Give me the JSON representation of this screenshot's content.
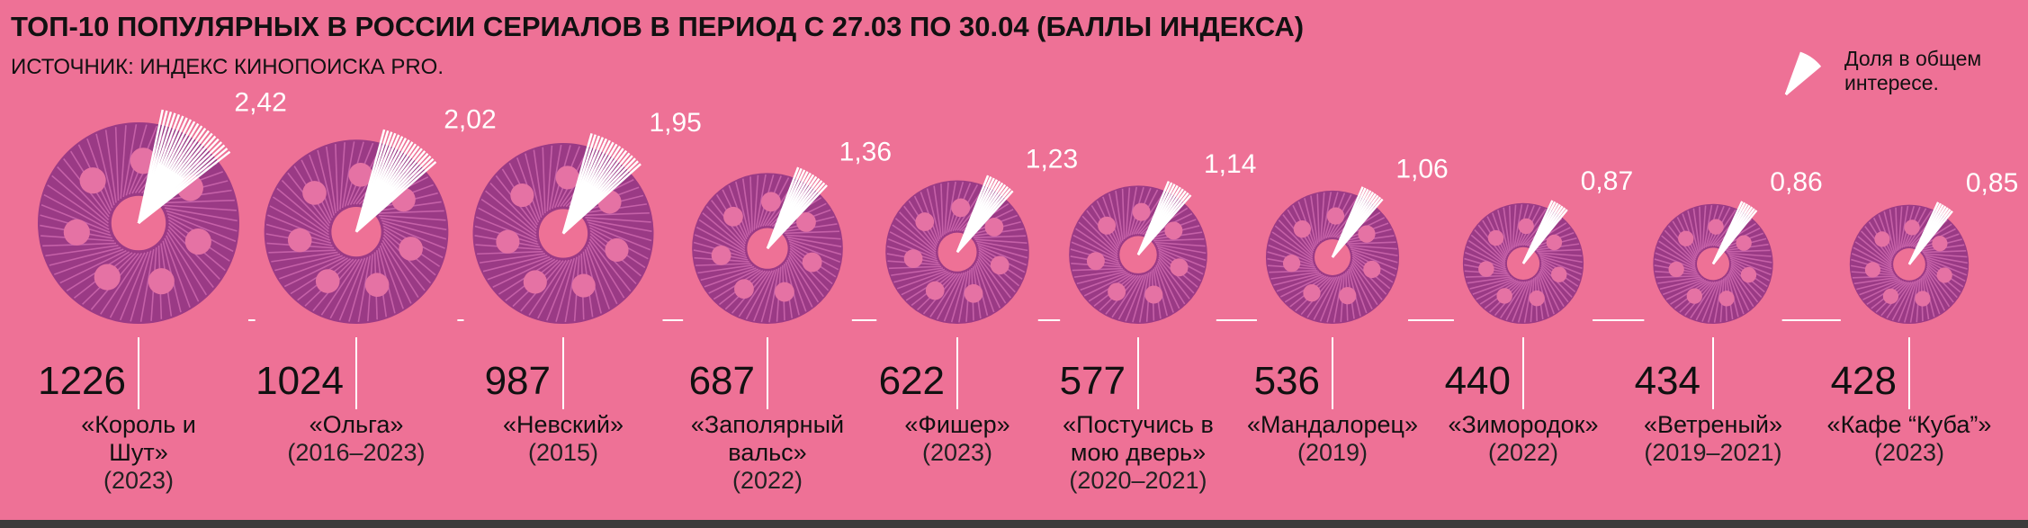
{
  "chart_data": {
    "type": "wheel",
    "title": "ТОП-10 ПОПУЛЯРНЫХ В РОССИИ СЕРИАЛОВ В ПЕРИОД С 27.03 ПО 30.04 (БАЛЛЫ ИНДЕКСА)",
    "subtitle": "ИСТОЧНИК: ИНДЕКС КИНОПОИСКА PRO.",
    "legend_label": "Доля в общем интересе.",
    "categories": [
      "«Король и Шут»",
      "«Ольга»",
      "«Невский»",
      "«Заполярный вальс»",
      "«Фишер»",
      "«Постучись в мою дверь»",
      "«Мандалорец»",
      "«Зимородок»",
      "«Ветреный»",
      "«Кафе “Куба”»"
    ],
    "years": [
      "(2023)",
      "(2016–2023)",
      "(2015)",
      "(2022)",
      "(2023)",
      "(2020–2021)",
      "(2019)",
      "(2022)",
      "(2019–2021)",
      "(2023)"
    ],
    "values": [
      1226,
      1024,
      987,
      687,
      622,
      577,
      536,
      440,
      434,
      428
    ],
    "shares": [
      2.42,
      2.02,
      1.95,
      1.36,
      1.23,
      1.14,
      1.06,
      0.87,
      0.86,
      0.85
    ],
    "share_labels": [
      "2,42",
      "2,02",
      "1,95",
      "1,36",
      "1,23",
      "1,14",
      "1,06",
      "0,87",
      "0,86",
      "0,85"
    ],
    "color": "#9a3a85"
  }
}
